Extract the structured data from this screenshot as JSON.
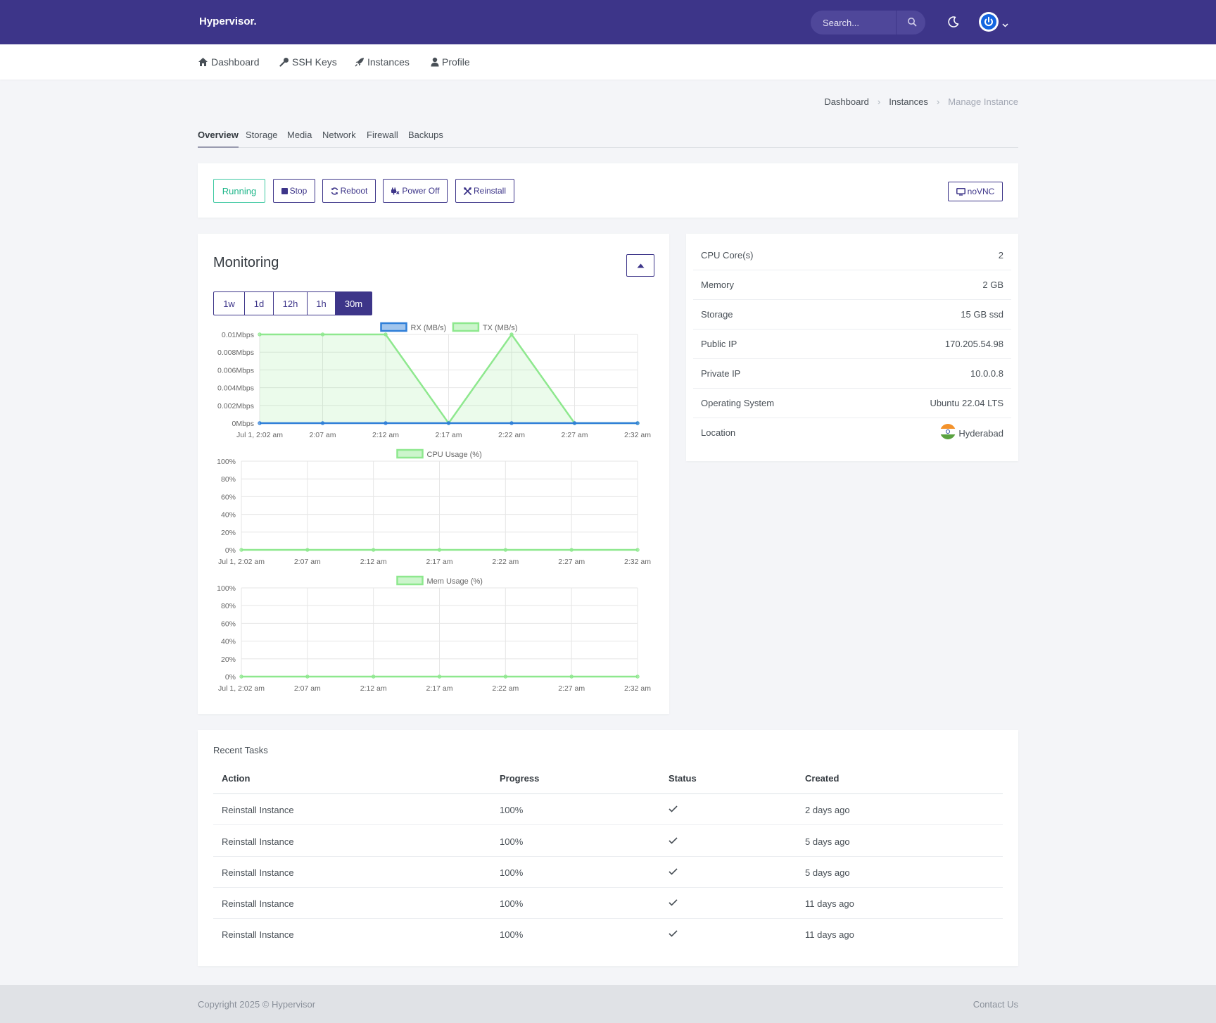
{
  "header": {
    "brand": "Hypervisor.",
    "search_placeholder": "Search..."
  },
  "nav": [
    {
      "label": "Dashboard",
      "icon": "home-icon"
    },
    {
      "label": "SSH Keys",
      "icon": "key-icon"
    },
    {
      "label": "Instances",
      "icon": "rocket-icon"
    },
    {
      "label": "Profile",
      "icon": "user-icon"
    }
  ],
  "breadcrumb": {
    "items": [
      "Dashboard",
      "Instances"
    ],
    "current": "Manage Instance"
  },
  "tabs": [
    "Overview",
    "Storage",
    "Media",
    "Network",
    "Firewall",
    "Backups"
  ],
  "actions": {
    "status": "Running",
    "stop": "Stop",
    "reboot": "Reboot",
    "power_off": "Power Off",
    "reinstall": "Reinstall",
    "novnc": "noVNC"
  },
  "monitoring": {
    "title": "Monitoring",
    "ranges": [
      "1w",
      "1d",
      "12h",
      "1h",
      "30m"
    ],
    "active_range": "30m"
  },
  "chart_data": [
    {
      "type": "line",
      "x": [
        "Jul 1, 2:02 am",
        "2:07 am",
        "2:12 am",
        "2:17 am",
        "2:22 am",
        "2:27 am",
        "2:32 am"
      ],
      "series": [
        {
          "name": "RX (MB/s)",
          "color": "#2f7fd8",
          "values": [
            0,
            0,
            0,
            0,
            0,
            0,
            0
          ]
        },
        {
          "name": "TX (MB/s)",
          "color": "#8ee88e",
          "values": [
            0.01,
            0.01,
            0.01,
            0,
            0.01,
            0,
            0
          ]
        }
      ],
      "y_ticks": [
        "0.01Mbps",
        "0.008Mbps",
        "0.006Mbps",
        "0.004Mbps",
        "0.002Mbps",
        "0Mbps"
      ],
      "ylim": [
        0,
        0.01
      ],
      "grid": true,
      "legend": "top"
    },
    {
      "type": "line",
      "x": [
        "Jul 1, 2:02 am",
        "2:07 am",
        "2:12 am",
        "2:17 am",
        "2:22 am",
        "2:27 am",
        "2:32 am"
      ],
      "series": [
        {
          "name": "CPU Usage (%)",
          "color": "#8ee88e",
          "values": [
            0,
            0,
            0,
            0,
            0,
            0,
            0
          ]
        }
      ],
      "y_ticks": [
        "100%",
        "80%",
        "60%",
        "40%",
        "20%",
        "0%"
      ],
      "ylim": [
        0,
        100
      ],
      "grid": true,
      "legend": "top"
    },
    {
      "type": "line",
      "x": [
        "Jul 1, 2:02 am",
        "2:07 am",
        "2:12 am",
        "2:17 am",
        "2:22 am",
        "2:27 am",
        "2:32 am"
      ],
      "series": [
        {
          "name": "Mem Usage (%)",
          "color": "#8ee88e",
          "values": [
            0,
            0,
            0,
            0,
            0,
            0,
            0
          ]
        }
      ],
      "y_ticks": [
        "100%",
        "80%",
        "60%",
        "40%",
        "20%",
        "0%"
      ],
      "ylim": [
        0,
        100
      ],
      "grid": true,
      "legend": "top"
    }
  ],
  "specs": [
    {
      "key": "CPU Core(s)",
      "value": "2"
    },
    {
      "key": "Memory",
      "value": "2 GB"
    },
    {
      "key": "Storage",
      "value": "15 GB ssd"
    },
    {
      "key": "Public IP",
      "value": "170.205.54.98"
    },
    {
      "key": "Private IP",
      "value": "10.0.0.8"
    },
    {
      "key": "Operating System",
      "value": "Ubuntu 22.04 LTS"
    },
    {
      "key": "Location",
      "value": "Hyderabad",
      "icon": "india-flag-icon"
    }
  ],
  "tasks": {
    "title": "Recent Tasks",
    "columns": [
      "Action",
      "Progress",
      "Status",
      "Created"
    ],
    "rows": [
      {
        "action": "Reinstall Instance",
        "progress": "100%",
        "status": "check-icon",
        "created": "2 days ago"
      },
      {
        "action": "Reinstall Instance",
        "progress": "100%",
        "status": "check-icon",
        "created": "5 days ago"
      },
      {
        "action": "Reinstall Instance",
        "progress": "100%",
        "status": "check-icon",
        "created": "5 days ago"
      },
      {
        "action": "Reinstall Instance",
        "progress": "100%",
        "status": "check-icon",
        "created": "11 days ago"
      },
      {
        "action": "Reinstall Instance",
        "progress": "100%",
        "status": "check-icon",
        "created": "11 days ago"
      }
    ]
  },
  "footer": {
    "copyright": "Copyright 2025 © Hypervisor",
    "contact": "Contact Us"
  },
  "colors": {
    "brand": "#3d3589",
    "status": "#1fb68a",
    "tx": "#8ee88e",
    "rx": "#2f7fd8"
  }
}
